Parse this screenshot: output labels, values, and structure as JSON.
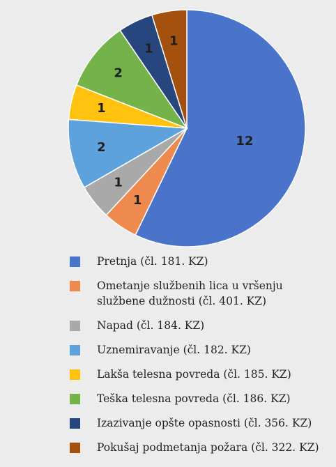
{
  "chart_data": {
    "type": "pie",
    "categories": [
      "Pretnja (čl. 181. KZ)",
      "Ometanje službenih lica u vršenju službene dužnosti (čl. 401. KZ)",
      "Napad (čl. 184. KZ)",
      "Uznemiravanje (čl. 182. KZ)",
      "Lakša telesna povreda (čl. 185. KZ)",
      "Teška telesna povreda (čl. 186. KZ)",
      "Izazivanje opšte opasnosti (čl. 356. KZ)",
      "Pokušaj podmetanja požara (čl. 322. KZ)"
    ],
    "values": [
      12,
      1,
      1,
      2,
      1,
      2,
      1,
      1
    ],
    "colors": [
      "#4a74c9",
      "#ef8a4f",
      "#a9a9a9",
      "#5ea2dd",
      "#ffc20e",
      "#74b24a",
      "#28467e",
      "#a4500f"
    ],
    "legend": "bottom"
  }
}
